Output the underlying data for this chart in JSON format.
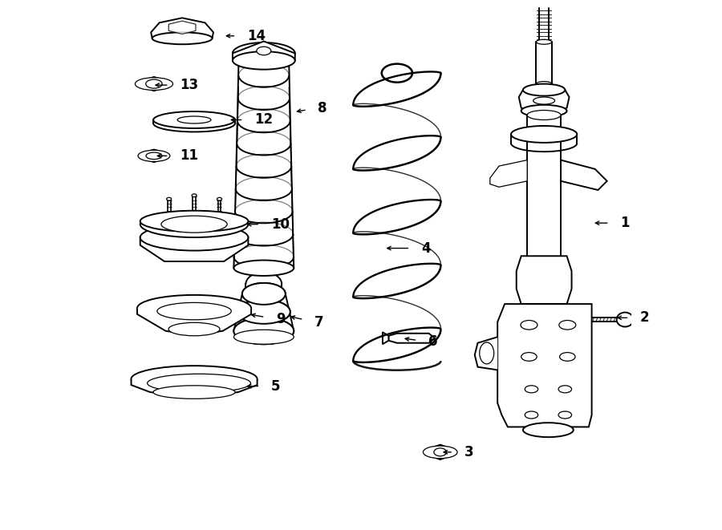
{
  "bg_color": "#ffffff",
  "line_color": "#000000",
  "figsize": [
    9.0,
    6.61
  ],
  "dpi": 100,
  "lw_main": 1.4,
  "lw_thin": 0.9,
  "font_size": 12,
  "callouts": [
    [
      1,
      8.35,
      5.1,
      8.82,
      5.1
    ],
    [
      2,
      8.72,
      3.52,
      9.15,
      3.52
    ],
    [
      3,
      5.82,
      1.28,
      6.22,
      1.28
    ],
    [
      4,
      4.88,
      4.68,
      5.5,
      4.68
    ],
    [
      5,
      2.55,
      2.38,
      3.0,
      2.38
    ],
    [
      6,
      5.18,
      3.18,
      5.62,
      3.12
    ],
    [
      7,
      3.28,
      3.55,
      3.72,
      3.45
    ],
    [
      8,
      3.38,
      6.95,
      3.78,
      7.02
    ],
    [
      9,
      2.62,
      3.58,
      3.08,
      3.5
    ],
    [
      10,
      2.55,
      5.08,
      3.0,
      5.08
    ],
    [
      11,
      1.05,
      6.22,
      1.48,
      6.22
    ],
    [
      12,
      2.28,
      6.82,
      2.72,
      6.82
    ],
    [
      13,
      1.02,
      7.4,
      1.48,
      7.4
    ],
    [
      14,
      2.2,
      8.22,
      2.6,
      8.22
    ]
  ]
}
